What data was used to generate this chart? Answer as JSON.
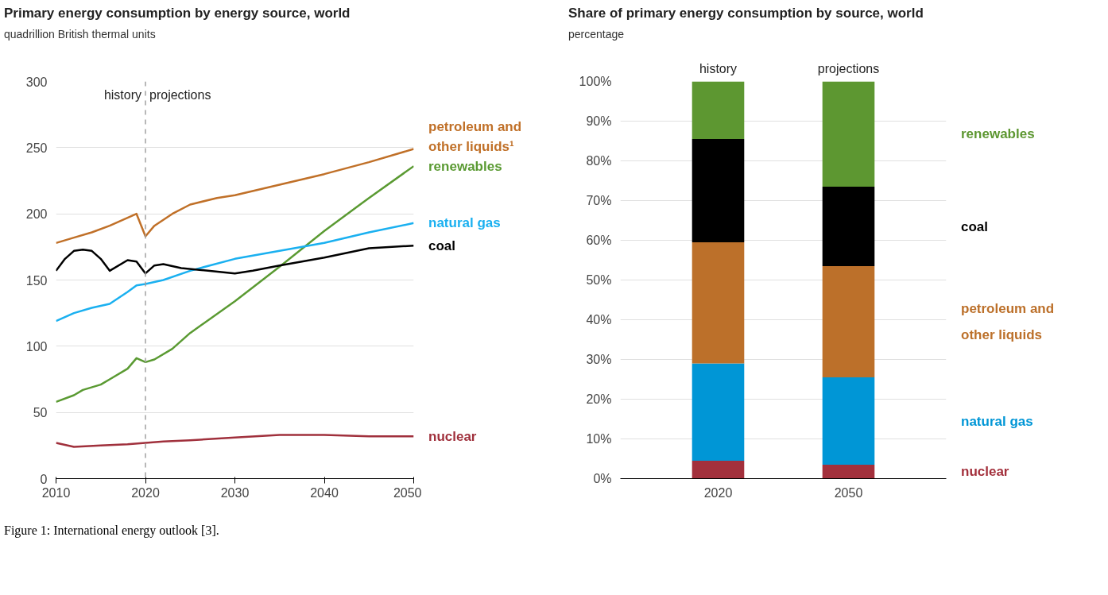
{
  "chart_data": [
    {
      "type": "line",
      "title": "Primary energy consumption by energy source, world",
      "ylabel": "quadrillion British thermal units",
      "xlim": [
        2010,
        2050
      ],
      "xticks": [
        2010,
        2020,
        2030,
        2040,
        2050
      ],
      "ylim": [
        0,
        300
      ],
      "yticks": [
        0,
        50,
        100,
        150,
        200,
        250,
        300
      ],
      "grid": "y",
      "marker": "none",
      "line_style": "solid",
      "ref_lines": [
        {
          "axis": "x",
          "value": 2020,
          "color": "#a0a0a0",
          "line_style": "dashed"
        }
      ],
      "annotations": [
        {
          "text": "history",
          "x": 2020,
          "y": 290
        },
        {
          "text": "projections",
          "x": 2020,
          "y": 290
        },
        "Figure 1: International energy outlook [3]."
      ],
      "series": [
        {
          "name": "petroleum and other liquids¹",
          "color": "#c07028",
          "x": [
            2010,
            2012,
            2014,
            2016,
            2018,
            2019,
            2020,
            2021,
            2023,
            2025,
            2028,
            2030,
            2035,
            2040,
            2045,
            2050
          ],
          "values": [
            178,
            182,
            186,
            191,
            197,
            200,
            183,
            191,
            200,
            207,
            212,
            214,
            222,
            230,
            239,
            249
          ]
        },
        {
          "name": "renewables",
          "color": "#5a9a32",
          "x": [
            2010,
            2012,
            2013,
            2015,
            2016,
            2018,
            2019,
            2020,
            2021,
            2023,
            2025,
            2030,
            2035,
            2040,
            2045,
            2050
          ],
          "values": [
            58,
            63,
            67,
            71,
            75,
            83,
            91,
            88,
            90,
            98,
            110,
            134,
            160,
            187,
            212,
            236
          ]
        },
        {
          "name": "natural gas",
          "color": "#1ab0f0",
          "x": [
            2010,
            2012,
            2014,
            2016,
            2018,
            2019,
            2020,
            2022,
            2025,
            2030,
            2035,
            2040,
            2045,
            2050
          ],
          "values": [
            119,
            125,
            129,
            132,
            141,
            146,
            147,
            150,
            157,
            166,
            172,
            178,
            186,
            193
          ]
        },
        {
          "name": "coal",
          "color": "#000000",
          "x": [
            2010,
            2011,
            2012,
            2013,
            2014,
            2015,
            2016,
            2018,
            2019,
            2020,
            2021,
            2022,
            2024,
            2027,
            2030,
            2032,
            2035,
            2040,
            2045,
            2050
          ],
          "values": [
            157,
            166,
            172,
            173,
            172,
            166,
            157,
            165,
            164,
            155,
            161,
            162,
            159,
            157,
            155,
            157,
            161,
            167,
            174,
            176
          ]
        },
        {
          "name": "nuclear",
          "color": "#a0303c",
          "x": [
            2010,
            2012,
            2015,
            2018,
            2020,
            2022,
            2025,
            2030,
            2035,
            2040,
            2045,
            2050
          ],
          "values": [
            27,
            24,
            25,
            26,
            27,
            28,
            29,
            31,
            33,
            33,
            32,
            32
          ]
        }
      ]
    },
    {
      "type": "bar",
      "stacked": true,
      "title": "Share of primary energy consumption by source, world",
      "ylabel": "percentage",
      "categories": [
        "2020",
        "2050"
      ],
      "ylim": [
        0,
        100
      ],
      "yticks": [
        {
          "value": 0,
          "label": "0%"
        },
        {
          "value": 10,
          "label": "10%"
        },
        {
          "value": 20,
          "label": "20%"
        },
        {
          "value": 30,
          "label": "30%"
        },
        {
          "value": 40,
          "label": "40%"
        },
        {
          "value": 50,
          "label": "50%"
        },
        {
          "value": 60,
          "label": "60%"
        },
        {
          "value": 70,
          "label": "70%"
        },
        {
          "value": 80,
          "label": "80%"
        },
        {
          "value": 90,
          "label": "90%"
        },
        {
          "value": 100,
          "label": "100%"
        }
      ],
      "grid": "y",
      "annotations": [
        "history",
        "projections"
      ],
      "series": [
        {
          "name": "nuclear",
          "color": "#a3303c",
          "values": [
            4.5,
            3.5
          ]
        },
        {
          "name": "natural gas",
          "color": "#0096d6",
          "values": [
            24.5,
            22
          ]
        },
        {
          "name": "petroleum and other liquids",
          "color": "#bc702a",
          "values": [
            30.5,
            28
          ]
        },
        {
          "name": "coal",
          "color": "#000000",
          "values": [
            26,
            20
          ]
        },
        {
          "name": "renewables",
          "color": "#5d9731",
          "values": [
            14.5,
            26.5
          ]
        }
      ]
    }
  ]
}
